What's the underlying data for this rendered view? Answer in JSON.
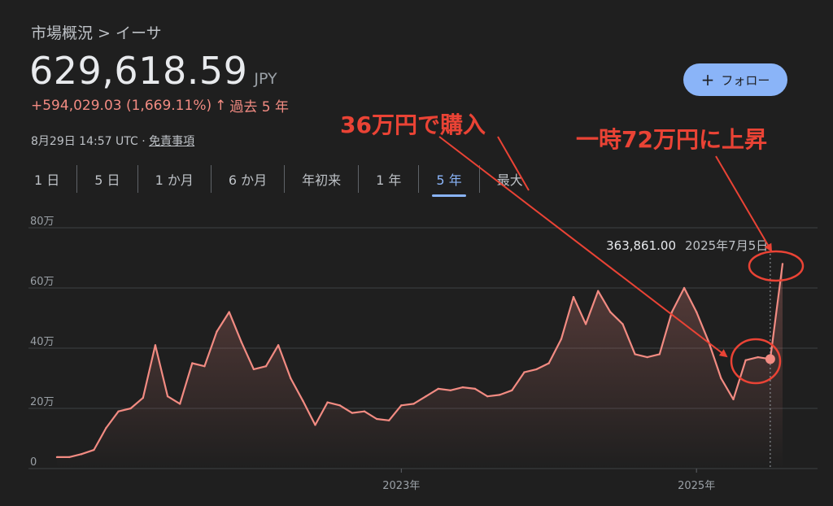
{
  "breadcrumb": "市場概況 > イーサ",
  "price": "629,618.59",
  "currency": "JPY",
  "change": {
    "text": "+594,029.03 (1,669.11%)",
    "arrow": "↑",
    "period": "過去 5 年"
  },
  "meta": {
    "timestamp": "8月29日 14:57 UTC",
    "separator": "·",
    "disclaimer": "免責事項"
  },
  "follow_button": {
    "plus": "+",
    "label": "フォロー"
  },
  "tabs": [
    "1 日",
    "5 日",
    "1 か月",
    "6 か月",
    "年初来",
    "1 年",
    "5 年",
    "最大"
  ],
  "active_tab": "5 年",
  "hover": {
    "value": "363,861.00",
    "date": "2025年7月5日"
  },
  "annotations": {
    "buy": "36万円で購入",
    "peak": "一時72万円に上昇",
    "color": "#ea4335"
  },
  "colors": {
    "line": "#f28b82",
    "accent": "#8ab4f8",
    "background": "#1f1f1f"
  },
  "chart_data": {
    "type": "area",
    "y_unit": "JPY",
    "ylim": [
      0,
      800000
    ],
    "y_ticks": [
      {
        "value": 0,
        "label": "0"
      },
      {
        "value": 200000,
        "label": "20万"
      },
      {
        "value": 400000,
        "label": "40万"
      },
      {
        "value": 600000,
        "label": "60万"
      },
      {
        "value": 800000,
        "label": "80万"
      }
    ],
    "x_ticks": [
      {
        "x": "2023-01",
        "label": "2023年"
      },
      {
        "x": "2025-01",
        "label": "2025年"
      }
    ],
    "grid": true,
    "series": [
      {
        "points": [
          [
            "2020-09",
            38000
          ],
          [
            "2020-10",
            38000
          ],
          [
            "2020-11",
            48000
          ],
          [
            "2020-12",
            62000
          ],
          [
            "2021-01",
            135000
          ],
          [
            "2021-02",
            190000
          ],
          [
            "2021-03",
            200000
          ],
          [
            "2021-04",
            235000
          ],
          [
            "2021-05",
            410000
          ],
          [
            "2021-06",
            240000
          ],
          [
            "2021-07",
            215000
          ],
          [
            "2021-08",
            350000
          ],
          [
            "2021-09",
            340000
          ],
          [
            "2021-10",
            455000
          ],
          [
            "2021-11",
            520000
          ],
          [
            "2021-12",
            420000
          ],
          [
            "2022-01",
            330000
          ],
          [
            "2022-02",
            340000
          ],
          [
            "2022-03",
            410000
          ],
          [
            "2022-04",
            300000
          ],
          [
            "2022-05",
            225000
          ],
          [
            "2022-06",
            145000
          ],
          [
            "2022-07",
            220000
          ],
          [
            "2022-08",
            210000
          ],
          [
            "2022-09",
            185000
          ],
          [
            "2022-10",
            190000
          ],
          [
            "2022-11",
            165000
          ],
          [
            "2022-12",
            160000
          ],
          [
            "2023-01",
            210000
          ],
          [
            "2023-02",
            215000
          ],
          [
            "2023-03",
            240000
          ],
          [
            "2023-04",
            265000
          ],
          [
            "2023-05",
            260000
          ],
          [
            "2023-06",
            270000
          ],
          [
            "2023-07",
            265000
          ],
          [
            "2023-08",
            240000
          ],
          [
            "2023-09",
            245000
          ],
          [
            "2023-10",
            260000
          ],
          [
            "2023-11",
            320000
          ],
          [
            "2023-12",
            330000
          ],
          [
            "2024-01",
            350000
          ],
          [
            "2024-02",
            430000
          ],
          [
            "2024-03",
            570000
          ],
          [
            "2024-04",
            480000
          ],
          [
            "2024-05",
            590000
          ],
          [
            "2024-06",
            520000
          ],
          [
            "2024-07",
            480000
          ],
          [
            "2024-08",
            380000
          ],
          [
            "2024-09",
            370000
          ],
          [
            "2024-10",
            380000
          ],
          [
            "2024-11",
            520000
          ],
          [
            "2024-12",
            600000
          ],
          [
            "2025-01",
            520000
          ],
          [
            "2025-02",
            420000
          ],
          [
            "2025-03",
            300000
          ],
          [
            "2025-04",
            230000
          ],
          [
            "2025-05",
            360000
          ],
          [
            "2025-06",
            370000
          ],
          [
            "2025-07",
            363861
          ],
          [
            "2025-08",
            680000
          ]
        ]
      }
    ],
    "hover_x": "2025-07"
  }
}
